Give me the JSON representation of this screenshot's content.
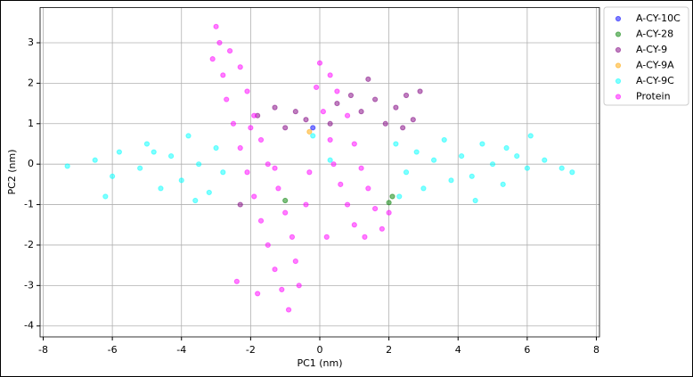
{
  "chart_data": {
    "type": "scatter",
    "x_label": "PC1 (nm)",
    "y_label": "PC2 (nm)",
    "xlim": [
      -8.09,
      8.09
    ],
    "ylim": [
      -4.27,
      3.87
    ],
    "xticks": [
      -8,
      -6,
      -4,
      -2,
      0,
      2,
      4,
      6,
      8
    ],
    "yticks": [
      -4,
      -3,
      -2,
      -1,
      0,
      1,
      2,
      3
    ],
    "grid": true,
    "legend": "outside-right",
    "series": [
      {
        "name": "A-CY-10C",
        "color": "#0000ff",
        "x": [
          -0.2
        ],
        "values": [
          0.9
        ]
      },
      {
        "name": "A-CY-28",
        "color": "#008000",
        "x": [
          2.0,
          2.1,
          -1.0
        ],
        "values": [
          -0.95,
          -0.8,
          -0.9
        ]
      },
      {
        "name": "A-CY-9",
        "color": "#800080",
        "x": [
          -1.8,
          -1.3,
          -1.0,
          -0.7,
          -0.4,
          0.3,
          0.9,
          1.2,
          1.6,
          1.9,
          2.2,
          2.5,
          2.7,
          2.9,
          2.4,
          1.4,
          -2.3,
          0.5
        ],
        "values": [
          1.2,
          1.4,
          0.9,
          1.3,
          1.1,
          1.0,
          1.7,
          1.3,
          1.6,
          1.0,
          1.4,
          1.7,
          1.1,
          1.8,
          0.9,
          2.1,
          -1.0,
          1.5
        ]
      },
      {
        "name": "A-CY-9A",
        "color": "#ffa500",
        "x": [
          -0.3
        ],
        "values": [
          0.8
        ]
      },
      {
        "name": "A-CY-9C",
        "color": "#00ffff",
        "x": [
          -7.3,
          -6.5,
          -6.0,
          -5.8,
          -5.2,
          -5.0,
          -4.6,
          -4.3,
          -4.0,
          -3.8,
          -3.5,
          -3.2,
          -3.0,
          -2.8,
          -3.6,
          -4.8,
          -6.2,
          2.2,
          2.5,
          2.8,
          3.0,
          3.3,
          3.6,
          3.8,
          4.1,
          4.4,
          4.7,
          5.0,
          5.3,
          5.7,
          6.0,
          6.1,
          6.5,
          7.0,
          7.3,
          2.3,
          4.5,
          -0.2,
          0.3,
          5.4
        ],
        "values": [
          -0.05,
          0.1,
          -0.3,
          0.3,
          -0.1,
          0.5,
          -0.6,
          0.2,
          -0.4,
          0.7,
          0.0,
          -0.7,
          0.4,
          -0.2,
          -0.9,
          0.3,
          -0.8,
          0.5,
          -0.2,
          0.3,
          -0.6,
          0.1,
          0.6,
          -0.4,
          0.2,
          -0.3,
          0.5,
          0.0,
          -0.5,
          0.2,
          -0.1,
          0.7,
          0.1,
          -0.1,
          -0.2,
          -0.8,
          -0.9,
          0.7,
          0.1,
          0.4
        ]
      },
      {
        "name": "Protein",
        "color": "#ff00ff",
        "x": [
          -3.0,
          -2.9,
          -3.1,
          -2.6,
          -2.8,
          -2.3,
          -2.7,
          -2.1,
          -2.5,
          -1.9,
          -2.3,
          -1.7,
          -2.1,
          -1.5,
          -1.9,
          -1.2,
          -1.7,
          -1.0,
          -1.5,
          -0.8,
          -1.3,
          -0.7,
          -1.1,
          -0.6,
          -0.9,
          -2.4,
          -1.8,
          -0.4,
          -1.3,
          -2.0,
          0.0,
          0.3,
          -0.1,
          0.5,
          0.1,
          0.8,
          0.3,
          1.0,
          0.4,
          1.2,
          0.6,
          1.4,
          0.8,
          1.6,
          1.0,
          1.8,
          1.3,
          2.0,
          -0.3,
          0.2
        ],
        "values": [
          3.4,
          3.0,
          2.6,
          2.8,
          2.2,
          2.4,
          1.6,
          1.8,
          1.0,
          1.2,
          0.4,
          0.6,
          -0.2,
          0.0,
          -0.8,
          -0.6,
          -1.4,
          -1.2,
          -2.0,
          -1.8,
          -2.6,
          -2.4,
          -3.1,
          -3.0,
          -3.6,
          -2.9,
          -3.2,
          -1.0,
          -0.1,
          0.9,
          2.5,
          2.2,
          1.9,
          1.8,
          1.3,
          1.2,
          0.6,
          0.5,
          0.0,
          -0.1,
          -0.5,
          -0.6,
          -1.0,
          -1.1,
          -1.5,
          -1.6,
          -1.8,
          -1.2,
          -0.2,
          -1.8
        ]
      }
    ]
  }
}
